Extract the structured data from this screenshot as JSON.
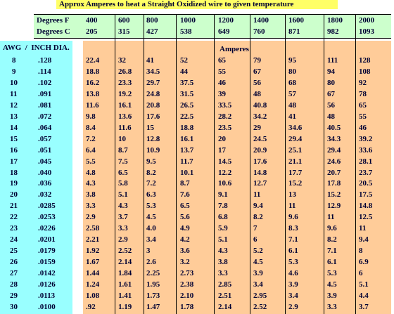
{
  "title": "Approx Amperes to heat a Straight Oxidized wire to given temperature",
  "header": {
    "degrees_f_label": "Degrees F",
    "degrees_f": [
      "400",
      "600",
      "800",
      "1000",
      "1200",
      "1400",
      "1600",
      "1800",
      "2000"
    ],
    "degrees_c_label": "Degrees C",
    "degrees_c": [
      "205",
      "315",
      "427",
      "538",
      "649",
      "760",
      "871",
      "982",
      "1093"
    ],
    "awg_label": "AWG  /  INCH DIA.",
    "amperes_label": "Amperes"
  },
  "rows": [
    {
      "awg": "8",
      "dia": ".128",
      "amps": [
        "22.4",
        "32",
        "41",
        "52",
        "65",
        "79",
        "95",
        "111",
        "128"
      ]
    },
    {
      "awg": "9",
      "dia": ".114",
      "amps": [
        "18.8",
        "26.8",
        "34.5",
        "44",
        "55",
        "67",
        "80",
        "94",
        "108"
      ]
    },
    {
      "awg": "10",
      "dia": ".102",
      "amps": [
        "16.2",
        "23.3",
        "29.7",
        "37.5",
        "46",
        "56",
        "68",
        "80",
        "92"
      ]
    },
    {
      "awg": "11",
      "dia": ".091",
      "amps": [
        "13.8",
        "19.2",
        "24.8",
        "31.5",
        "39",
        "48",
        "57",
        "67",
        "78"
      ]
    },
    {
      "awg": "12",
      "dia": ".081",
      "amps": [
        "11.6",
        "16.1",
        "20.8",
        "26.5",
        "33.5",
        "40.8",
        "48",
        "56",
        "65"
      ]
    },
    {
      "awg": "13",
      "dia": ".072",
      "amps": [
        "9.8",
        "13.6",
        "17.6",
        "22.5",
        "28.2",
        "34.2",
        "41",
        "48",
        "55"
      ]
    },
    {
      "awg": "14",
      "dia": ".064",
      "amps": [
        "8.4",
        "11.6",
        "15",
        "18.8",
        "23.5",
        "29",
        "34.6",
        "40.5",
        "46"
      ]
    },
    {
      "awg": "15",
      "dia": ".057",
      "amps": [
        "7.2",
        "10",
        "12.8",
        "16.1",
        "20",
        "24.5",
        "29.4",
        "34.3",
        "39.2"
      ]
    },
    {
      "awg": "16",
      "dia": ".051",
      "amps": [
        "6.4",
        "8.7",
        "10.9",
        "13.7",
        "17",
        "20.9",
        "25.1",
        "29.4",
        "33.6"
      ]
    },
    {
      "awg": "17",
      "dia": ".045",
      "amps": [
        "5.5",
        "7.5",
        "9.5",
        "11.7",
        "14.5",
        "17.6",
        "21.1",
        "24.6",
        "28.1"
      ]
    },
    {
      "awg": "18",
      "dia": ".040",
      "amps": [
        "4.8",
        "6.5",
        "8.2",
        "10.1",
        "12.2",
        "14.8",
        "17.7",
        "20.7",
        "23.7"
      ]
    },
    {
      "awg": "19",
      "dia": ".036",
      "amps": [
        "4.3",
        "5.8",
        "7.2",
        "8.7",
        "10.6",
        "12.7",
        "15.2",
        "17.8",
        "20.5"
      ]
    },
    {
      "awg": "20",
      "dia": ".032",
      "amps": [
        "3.8",
        "5.1",
        "6.3",
        "7.6",
        "9.1",
        "11",
        "13",
        "15.2",
        "17.5"
      ]
    },
    {
      "awg": "21",
      "dia": ".0285",
      "amps": [
        "3.3",
        "4.3",
        "5.3",
        "6.5",
        "7.8",
        "9.4",
        "11",
        "12.9",
        "14.8"
      ]
    },
    {
      "awg": "22",
      "dia": ".0253",
      "amps": [
        "2.9",
        "3.7",
        "4.5",
        "5.6",
        "6.8",
        "8.2",
        "9.6",
        "11",
        "12.5"
      ]
    },
    {
      "awg": "23",
      "dia": ".0226",
      "amps": [
        "2.58",
        "3.3",
        "4.0",
        "4.9",
        "5.9",
        "7",
        "8.3",
        "9.6",
        "11"
      ]
    },
    {
      "awg": "24",
      "dia": ".0201",
      "amps": [
        "2.21",
        "2.9",
        "3.4",
        "4.2",
        "5.1",
        "6",
        "7.1",
        "8.2",
        "9.4"
      ]
    },
    {
      "awg": "25",
      "dia": ".0179",
      "amps": [
        "1.92",
        "2.52",
        "3",
        "3.6",
        "4.3",
        "5.2",
        "6.1",
        "7.1",
        "8"
      ]
    },
    {
      "awg": "26",
      "dia": ".0159",
      "amps": [
        "1.67",
        "2.14",
        "2.6",
        "3.2",
        "3.8",
        "4.5",
        "5.3",
        "6.1",
        "6.9"
      ]
    },
    {
      "awg": "27",
      "dia": ".0142",
      "amps": [
        "1.44",
        "1.84",
        "2.25",
        "2.73",
        "3.3",
        "3.9",
        "4.6",
        "5.3",
        "6"
      ]
    },
    {
      "awg": "28",
      "dia": ".0126",
      "amps": [
        "1.24",
        "1.61",
        "1.95",
        "2.38",
        "2.85",
        "3.4",
        "3.9",
        "4.5",
        "5.1"
      ]
    },
    {
      "awg": "29",
      "dia": ".0113",
      "amps": [
        "1.08",
        "1.41",
        "1.73",
        "2.10",
        "2.51",
        "2.95",
        "3.4",
        "3.9",
        "4.4"
      ]
    },
    {
      "awg": "30",
      "dia": ".0100",
      "amps": [
        ".92",
        "1.19",
        "1.47",
        "1.78",
        "2.14",
        "2.52",
        "2.9",
        "3.3",
        "3.7"
      ]
    }
  ]
}
